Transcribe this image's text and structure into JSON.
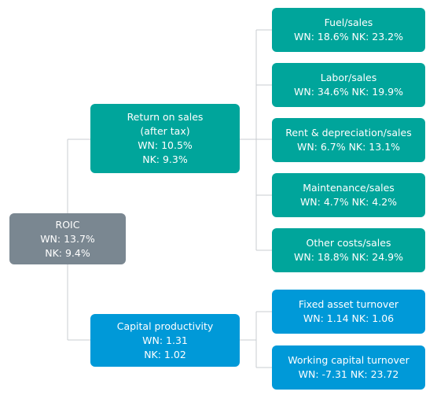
{
  "root": {
    "title": "ROIC",
    "lines": [
      "WN: 13.7%",
      "NK: 9.4%"
    ]
  },
  "return_on_sales": {
    "title": "Return on sales",
    "subtitle": "(after tax)",
    "lines": [
      "WN: 10.5%",
      "NK: 9.3%"
    ]
  },
  "capital_productivity": {
    "title": "Capital productivity",
    "lines": [
      "WN: 1.31",
      "NK: 1.02"
    ]
  },
  "sales_items": [
    {
      "title": "Fuel/sales",
      "value": "WN: 18.6% NK: 23.2%"
    },
    {
      "title": "Labor/sales",
      "value": "WN: 34.6% NK: 19.9%"
    },
    {
      "title": "Rent & depreciation/sales",
      "value": "WN: 6.7% NK: 13.1%"
    },
    {
      "title": "Maintenance/sales",
      "value": "WN: 4.7% NK: 4.2%"
    },
    {
      "title": "Other costs/sales",
      "value": "WN: 18.8% NK: 24.9%"
    }
  ],
  "capital_items": [
    {
      "title": "Fixed asset turnover",
      "value": "WN: 1.14 NK: 1.06"
    },
    {
      "title": "Working capital turnover",
      "value": "WN: -7.31 NK: 23.72"
    }
  ],
  "colors": {
    "teal": "#00a59b",
    "blue": "#0099d8",
    "gray": "#7a8791",
    "line": "#c8ccd0"
  }
}
